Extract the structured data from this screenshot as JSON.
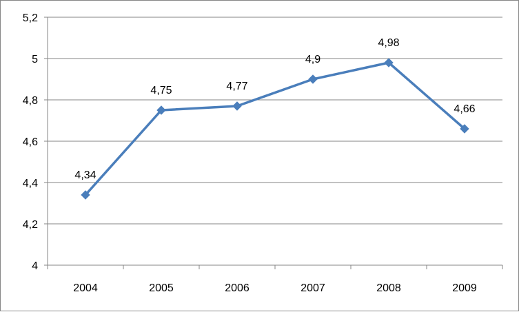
{
  "chart_data": {
    "type": "line",
    "categories": [
      "2004",
      "2005",
      "2006",
      "2007",
      "2008",
      "2009"
    ],
    "series": [
      {
        "values": [
          4.34,
          4.75,
          4.77,
          4.9,
          4.98,
          4.66
        ],
        "data_labels": [
          "4,34",
          "4,75",
          "4,77",
          "4,9",
          "4,98",
          "4,66"
        ],
        "color": "#4a7ebb",
        "marker": "diamond"
      }
    ],
    "ylim": [
      4,
      5.2
    ],
    "y_ticks": [
      4,
      4.2,
      4.4,
      4.6,
      4.8,
      5,
      5.2
    ],
    "y_tick_labels": [
      "4",
      "4,2",
      "4,4",
      "4,6",
      "4,8",
      "5",
      "5,2"
    ],
    "grid": true,
    "legend": "none",
    "title": "",
    "xlabel": "",
    "ylabel": ""
  },
  "colors": {
    "gridline": "#868686",
    "axis": "#868686",
    "series": "#4a7ebb"
  }
}
